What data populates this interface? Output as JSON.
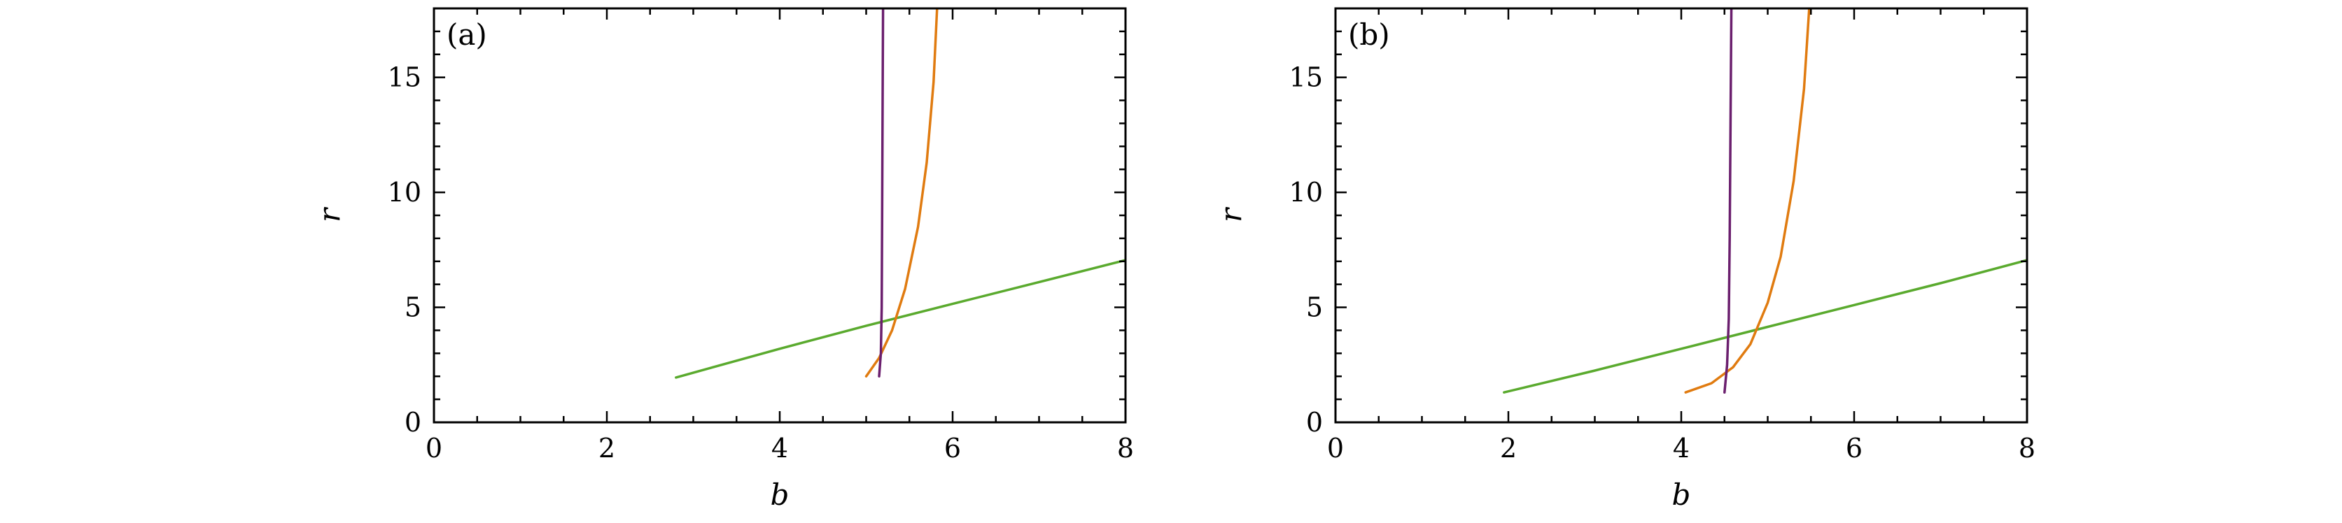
{
  "chart_data": [
    {
      "type": "line",
      "panel_label": "(a)",
      "xlabel": "b",
      "ylabel": "r",
      "xlim": [
        0,
        8
      ],
      "ylim": [
        0,
        18
      ],
      "xticks": [
        0,
        2,
        4,
        6,
        8
      ],
      "yticks": [
        0,
        5,
        10,
        15
      ],
      "grid": false,
      "series": [
        {
          "color": "#5aaa2e",
          "x": [
            2.8,
            4.0,
            5.0,
            6.0,
            7.0,
            8.0
          ],
          "y": [
            1.95,
            3.2,
            4.2,
            5.15,
            6.1,
            7.05
          ]
        },
        {
          "color": "#e07b10",
          "x": [
            5.0,
            5.15,
            5.3,
            5.45,
            5.6,
            5.7,
            5.78,
            5.82
          ],
          "y": [
            2.0,
            2.8,
            4.0,
            5.8,
            8.5,
            11.3,
            14.8,
            18.0
          ]
        },
        {
          "color": "#6b1f6e",
          "x": [
            5.15,
            5.17,
            5.18,
            5.185,
            5.19,
            5.195
          ],
          "y": [
            2.0,
            3.0,
            5.0,
            9.0,
            14.0,
            18.0
          ]
        }
      ]
    },
    {
      "type": "line",
      "panel_label": "(b)",
      "xlabel": "b",
      "ylabel": "r",
      "xlim": [
        0,
        8
      ],
      "ylim": [
        0,
        18
      ],
      "xticks": [
        0,
        2,
        4,
        6,
        8
      ],
      "yticks": [
        0,
        5,
        10,
        15
      ],
      "grid": false,
      "series": [
        {
          "color": "#5aaa2e",
          "x": [
            1.95,
            3.0,
            4.0,
            5.0,
            6.0,
            7.0,
            8.0
          ],
          "y": [
            1.3,
            2.25,
            3.2,
            4.15,
            5.1,
            6.05,
            7.05
          ]
        },
        {
          "color": "#e07b10",
          "x": [
            4.05,
            4.35,
            4.6,
            4.8,
            5.0,
            5.15,
            5.3,
            5.42,
            5.48
          ],
          "y": [
            1.3,
            1.7,
            2.4,
            3.4,
            5.2,
            7.2,
            10.5,
            14.5,
            18.0
          ]
        },
        {
          "color": "#6b1f6e",
          "x": [
            4.5,
            4.53,
            4.55,
            4.56,
            4.57,
            4.58
          ],
          "y": [
            1.3,
            2.5,
            4.5,
            8.0,
            13.0,
            18.0
          ]
        }
      ]
    }
  ]
}
